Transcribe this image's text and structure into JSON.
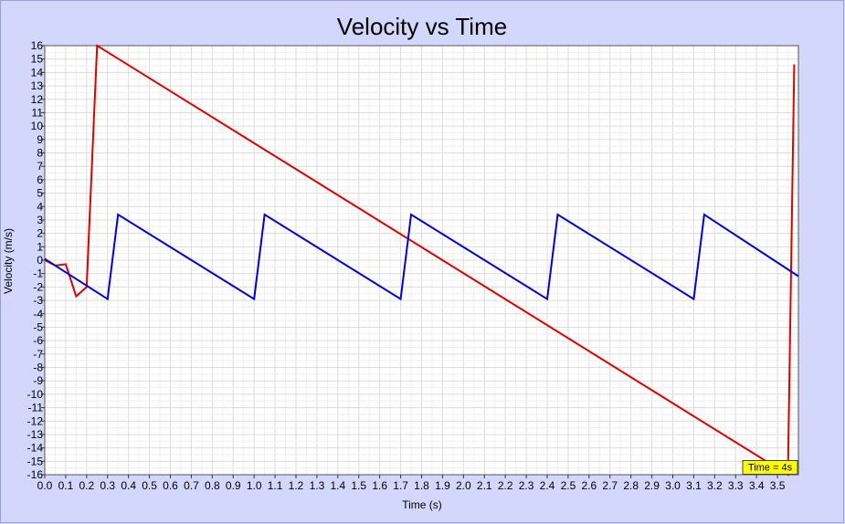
{
  "chart_data": {
    "type": "line",
    "title": "Velocity vs Time",
    "xlabel": "Time (s)",
    "ylabel": "Velocity (m/s)",
    "xlim": [
      0.0,
      3.6
    ],
    "ylim": [
      -16,
      16
    ],
    "grid": true,
    "x_ticks": [
      "0.0",
      "0.1",
      "0.2",
      "0.3",
      "0.4",
      "0.5",
      "0.6",
      "0.7",
      "0.8",
      "0.9",
      "1.0",
      "1.1",
      "1.2",
      "1.3",
      "1.4",
      "1.5",
      "1.6",
      "1.7",
      "1.8",
      "1.9",
      "2.0",
      "2.1",
      "2.2",
      "2.3",
      "2.4",
      "2.5",
      "2.6",
      "2.7",
      "2.8",
      "2.9",
      "3.0",
      "3.1",
      "3.2",
      "3.3",
      "3.4",
      "3.5"
    ],
    "y_ticks": [
      "16",
      "15",
      "14",
      "13",
      "12",
      "11",
      "10",
      "9",
      "8",
      "7",
      "6",
      "5",
      "4",
      "3",
      "2",
      "1",
      "0",
      "-1",
      "-2",
      "-3",
      "-4",
      "-5",
      "-6",
      "-7",
      "-8",
      "-9",
      "-10",
      "-11",
      "-12",
      "-13",
      "-14",
      "-15",
      "-16"
    ],
    "series": [
      {
        "color": "#e00000",
        "points": [
          [
            0.0,
            0.0
          ],
          [
            0.05,
            -0.4
          ],
          [
            0.1,
            -0.3
          ],
          [
            0.15,
            -2.7
          ],
          [
            0.2,
            -2.0
          ],
          [
            0.25,
            16.0
          ],
          [
            3.55,
            -16.0
          ],
          [
            3.58,
            14.6
          ]
        ]
      },
      {
        "color": "#0000dd",
        "points": [
          [
            0.0,
            0.1
          ],
          [
            0.3,
            -2.9
          ],
          [
            0.35,
            3.4
          ],
          [
            1.0,
            -2.9
          ],
          [
            1.05,
            3.4
          ],
          [
            1.7,
            -2.9
          ],
          [
            1.75,
            3.4
          ],
          [
            2.4,
            -2.9
          ],
          [
            2.45,
            3.4
          ],
          [
            3.1,
            -2.9
          ],
          [
            3.15,
            3.4
          ],
          [
            3.6,
            -1.2
          ]
        ]
      }
    ],
    "annotation": "Time = 4s",
    "annotation_color": "#ffff00"
  }
}
